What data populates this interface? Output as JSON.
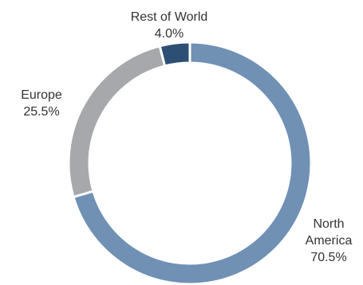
{
  "chart_data": {
    "type": "pie",
    "variant": "donut",
    "title": "",
    "slices": [
      {
        "name": "North America",
        "value": 70.5,
        "label": "70.5%",
        "label_lines": [
          "North",
          "America"
        ],
        "color": "#7090b4"
      },
      {
        "name": "Europe",
        "value": 25.5,
        "label": "25.5%",
        "label_lines": [
          "Europe"
        ],
        "color": "#a6a8ab"
      },
      {
        "name": "Rest of World",
        "value": 4.0,
        "label": "4.0%",
        "label_lines": [
          "Rest of World"
        ],
        "color": "#2e4f74"
      }
    ],
    "legend": "none",
    "start_angle_deg": 0,
    "direction": "clockwise"
  }
}
